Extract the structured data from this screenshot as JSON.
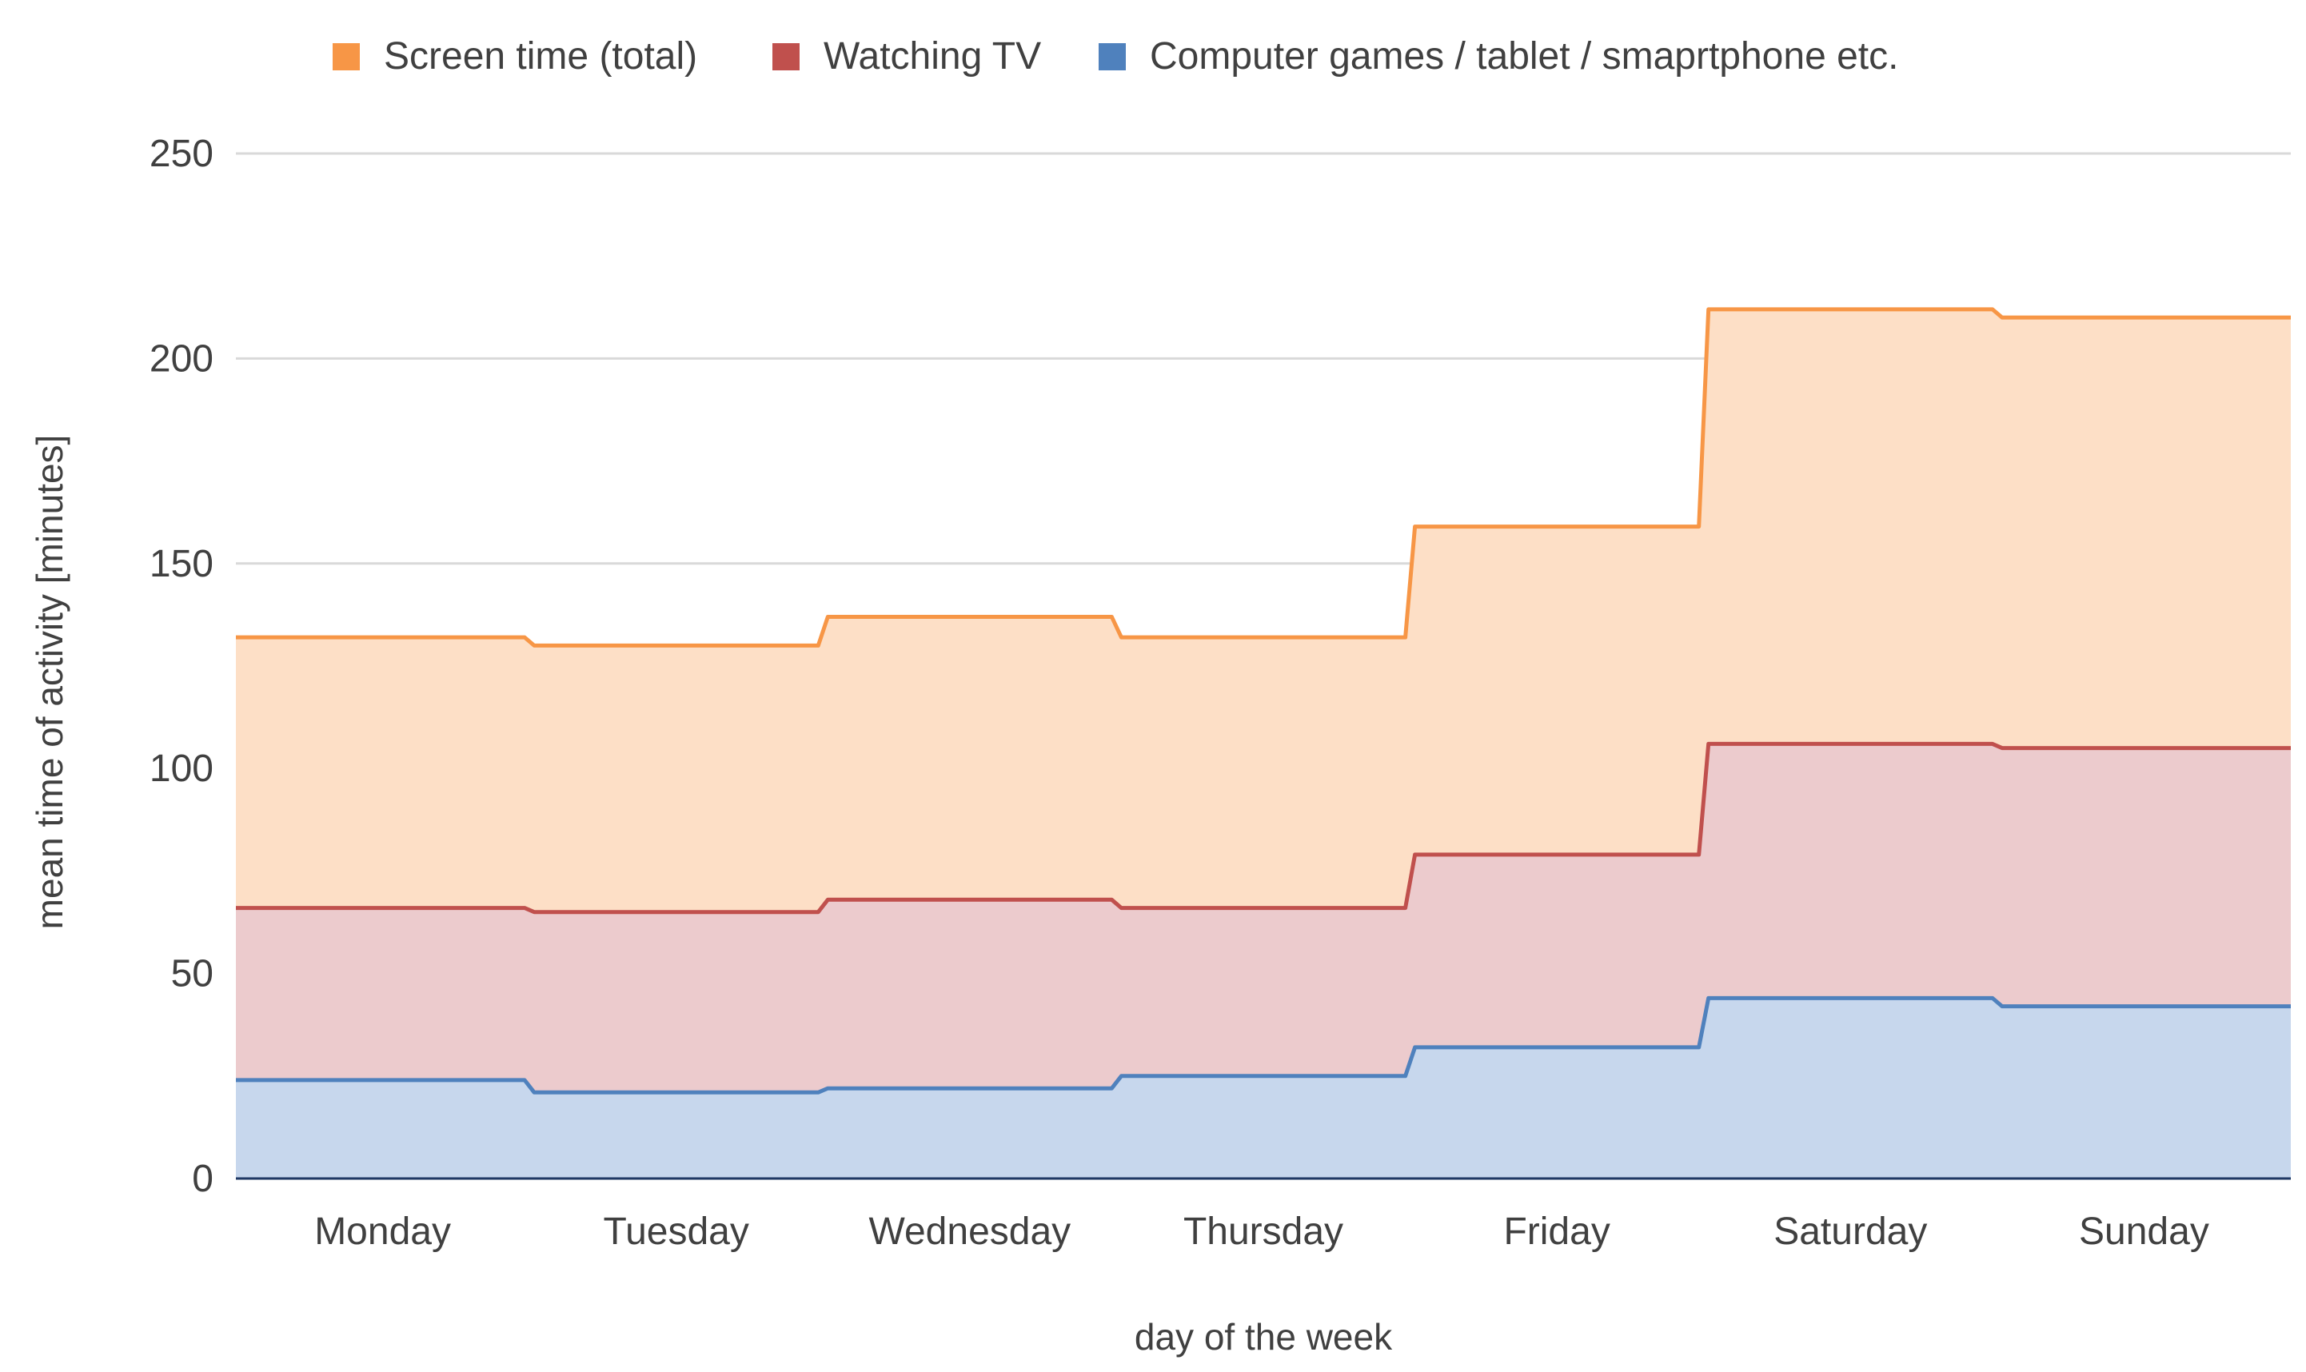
{
  "chart_data": {
    "type": "area",
    "step": true,
    "categories": [
      "Monday",
      "Tuesday",
      "Wednesday",
      "Thursday",
      "Friday",
      "Saturday",
      "Sunday"
    ],
    "series": [
      {
        "name": "Screen time (total)",
        "color": "#f79646",
        "fill": "#fddfc6",
        "values": [
          132,
          130,
          137,
          132,
          159,
          212,
          210
        ]
      },
      {
        "name": "Watching TV",
        "color": "#c0504d",
        "fill": "#eccbcd",
        "values": [
          66,
          65,
          68,
          66,
          79,
          106,
          105
        ]
      },
      {
        "name": "Computer games / tablet / smaprtphone etc.",
        "color": "#4f81bd",
        "fill": "#c7d7ed",
        "values": [
          24,
          21,
          22,
          25,
          32,
          44,
          42
        ]
      }
    ],
    "xlabel": "day of the week",
    "ylabel": "mean time of activity [minutes]",
    "ylim": [
      0,
      250
    ],
    "yticks": [
      0,
      50,
      100,
      150,
      200,
      250
    ],
    "grid": true,
    "legend_position": "top"
  }
}
